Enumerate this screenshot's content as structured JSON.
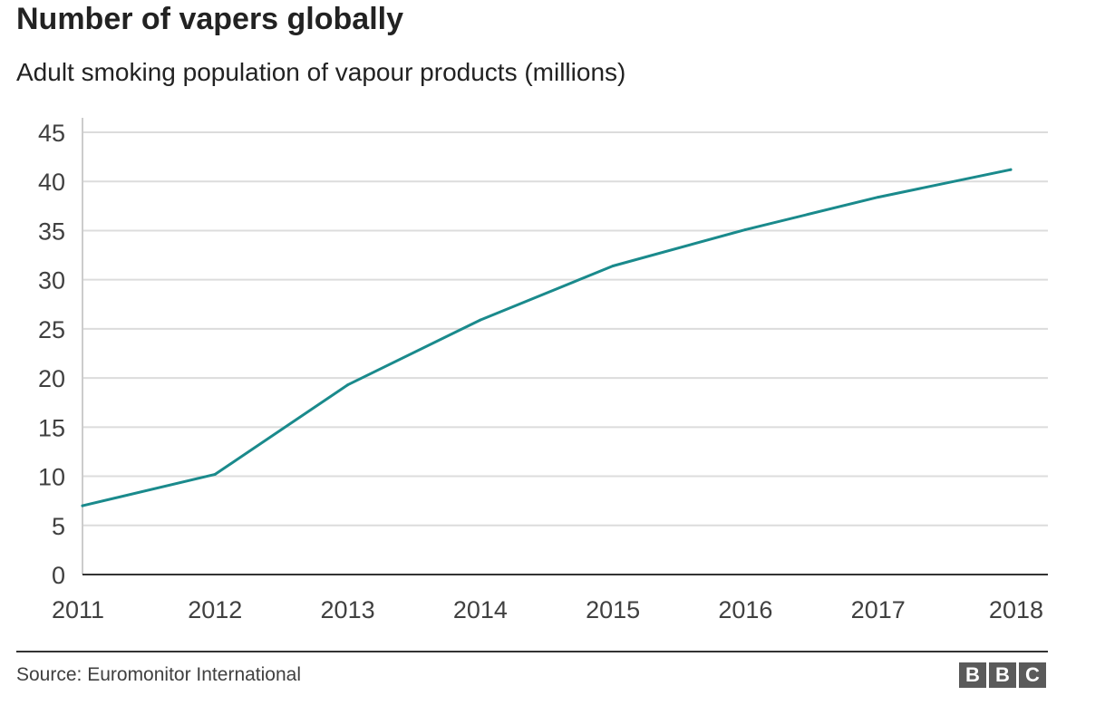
{
  "chart_data": {
    "type": "line",
    "title": "Number of vapers globally",
    "subtitle": "Adult smoking population of vapour products (millions)",
    "xlabel": "",
    "ylabel": "",
    "categories": [
      "2011",
      "2012",
      "2013",
      "2014",
      "2015",
      "2016",
      "2017",
      "2018"
    ],
    "series": [
      {
        "values": [
          7,
          10.2,
          19.3,
          25.9,
          31.4,
          35.1,
          38.4,
          41.2
        ],
        "color": "#1a8a8c"
      }
    ],
    "yticks": [
      "0",
      "5",
      "10",
      "15",
      "20",
      "25",
      "30",
      "35",
      "40",
      "45"
    ],
    "ylim": [
      0,
      45
    ],
    "grid": true,
    "legend": "none"
  },
  "footer": {
    "source": "Source: Euromonitor International",
    "logo": [
      "B",
      "B",
      "C"
    ]
  }
}
